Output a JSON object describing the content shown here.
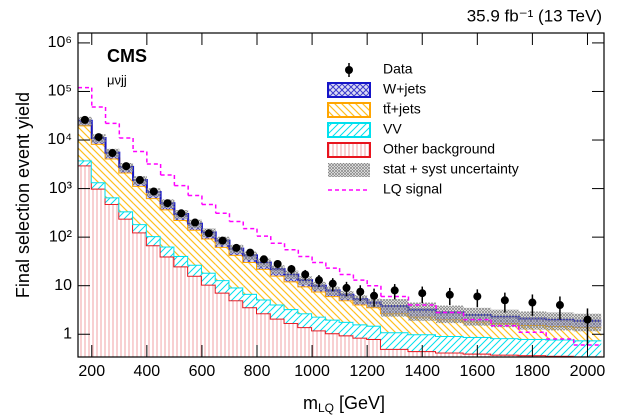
{
  "chart_data": {
    "type": "histogram",
    "energy_label": "35.9 fb⁻¹ (13 TeV)",
    "experiment": "CMS",
    "channel": "μνjj",
    "y_label": "Final selection event yield",
    "x_label": {
      "symbol": "m",
      "subscript": "LQ",
      "unit": "[GeV]"
    },
    "log_y": true,
    "xlim": [
      150,
      2060
    ],
    "ylim": [
      0.34,
      1600000
    ],
    "xticks": [
      200,
      400,
      600,
      800,
      1000,
      1200,
      1400,
      1600,
      1800,
      2000
    ],
    "yticks": [
      {
        "value": 1000000,
        "label": "10⁶"
      },
      {
        "value": 100000,
        "label": "10⁵"
      },
      {
        "value": 10000,
        "label": "10⁴"
      },
      {
        "value": 1000,
        "label": "10³"
      },
      {
        "value": 100,
        "label": "10²"
      },
      10,
      1
    ],
    "bins": [
      150,
      200,
      250,
      300,
      350,
      400,
      450,
      500,
      550,
      600,
      650,
      700,
      750,
      800,
      850,
      900,
      950,
      1000,
      1050,
      1100,
      1150,
      1200,
      1250,
      1350,
      1450,
      1550,
      1650,
      1750,
      1850,
      1950,
      2050
    ],
    "series": [
      {
        "name": "Other background",
        "color": "#e8141e",
        "values": [
          3000,
          1000,
          480,
          240,
          125,
          68,
          40,
          25,
          16,
          10.5,
          7.2,
          5,
          3.6,
          2.7,
          2.1,
          1.7,
          1.4,
          1.2,
          1.05,
          0.95,
          0.85,
          0.8,
          0.5,
          0.45,
          0.42,
          0.4,
          0.38,
          0.37,
          0.36,
          0.35
        ]
      },
      {
        "name": "VV",
        "color": "#00e0ee",
        "values": [
          800,
          350,
          180,
          100,
          60,
          37,
          24,
          16,
          11,
          8,
          5.8,
          4.2,
          3.2,
          2.5,
          2,
          1.6,
          1.3,
          1.1,
          0.95,
          0.85,
          0.75,
          0.7,
          0.6,
          0.55,
          0.5,
          0.48,
          0.45,
          0.43,
          0.42,
          0.4
        ]
      },
      {
        "name": "tt̄+jets",
        "color": "#ffa500",
        "values": [
          16200,
          7000,
          3500,
          1800,
          950,
          530,
          310,
          185,
          115,
          75,
          50,
          34,
          24,
          17,
          12,
          9,
          7,
          5.3,
          4.1,
          3.2,
          2.5,
          2.1,
          1.6,
          1.3,
          1.1,
          0.95,
          0.85,
          0.75,
          0.7,
          0.65
        ]
      },
      {
        "name": "W+jets",
        "color": "#1515c8",
        "values": [
          5000,
          2650,
          1340,
          660,
          365,
          215,
          126,
          74,
          48,
          31.5,
          22,
          14.8,
          11.2,
          7.8,
          5.9,
          4.7,
          3.3,
          2.4,
          1.9,
          1.5,
          1.2,
          0.9,
          1.1,
          0.9,
          0.78,
          0.67,
          0.62,
          0.55,
          0.52,
          0.5
        ]
      }
    ],
    "uncertainty": {
      "name": "stat + syst uncertainty",
      "color": "#888888",
      "values": [
        5000,
        2200,
        1100,
        560,
        300,
        170,
        100,
        60,
        38,
        25,
        17,
        11.6,
        8.4,
        6,
        4.4,
        3.4,
        2.6,
        2,
        1.6,
        1.3,
        1.06,
        0.9,
        1.5,
        1.3,
        1.1,
        1,
        0.9,
        0.85,
        0.8,
        0.75
      ]
    },
    "data": {
      "name": "Data",
      "color": "#000000",
      "values": [
        26000,
        11500,
        5400,
        2900,
        1500,
        870,
        500,
        310,
        200,
        120,
        85,
        60,
        48,
        35,
        28,
        22,
        17,
        13,
        11,
        9,
        7.5,
        6.2,
        8,
        7,
        6.5,
        6,
        5,
        4.5,
        4,
        2
      ],
      "errors": [
        160,
        110,
        73,
        54,
        39,
        30,
        22,
        18,
        14,
        11,
        9.2,
        7.7,
        6.9,
        5.9,
        5.3,
        4.7,
        4.1,
        3.6,
        3.3,
        3,
        2.7,
        2.5,
        2.8,
        2.6,
        2.5,
        2.4,
        2.2,
        2.1,
        2,
        1.4
      ]
    },
    "signal": {
      "name": "LQ signal",
      "color": "#ff00ff",
      "values": [
        120000,
        48000,
        22000,
        11000,
        5800,
        3200,
        1900,
        1150,
        720,
        470,
        310,
        210,
        150,
        105,
        75,
        55,
        40,
        30,
        23,
        17,
        13,
        10,
        6,
        4,
        2.8,
        2,
        1.5,
        1.1,
        0.8,
        0.6
      ]
    }
  }
}
